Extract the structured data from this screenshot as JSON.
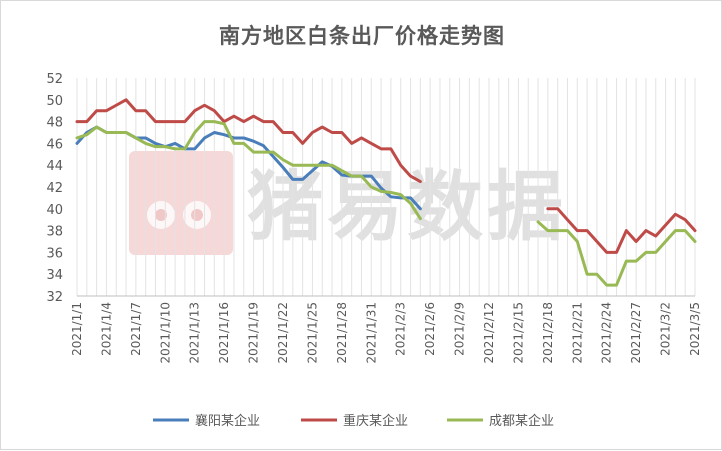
{
  "chart_data": {
    "type": "line",
    "title": "南方地区白条出厂价格走势图",
    "watermark": "猪易数据",
    "ylim": [
      32,
      52
    ],
    "yticks": [
      32,
      34,
      36,
      38,
      40,
      42,
      44,
      46,
      48,
      50,
      52
    ],
    "x": [
      "2021/1/1",
      "2021/1/2",
      "2021/1/3",
      "2021/1/4",
      "2021/1/5",
      "2021/1/6",
      "2021/1/7",
      "2021/1/8",
      "2021/1/9",
      "2021/1/10",
      "2021/1/11",
      "2021/1/12",
      "2021/1/13",
      "2021/1/14",
      "2021/1/15",
      "2021/1/16",
      "2021/1/17",
      "2021/1/18",
      "2021/1/19",
      "2021/1/20",
      "2021/1/21",
      "2021/1/22",
      "2021/1/23",
      "2021/1/24",
      "2021/1/25",
      "2021/1/26",
      "2021/1/27",
      "2021/1/28",
      "2021/1/29",
      "2021/1/30",
      "2021/1/31",
      "2021/2/1",
      "2021/2/2",
      "2021/2/3",
      "2021/2/4",
      "2021/2/5",
      "2021/2/6",
      "2021/2/7",
      "2021/2/8",
      "2021/2/9",
      "2021/2/10",
      "2021/2/11",
      "2021/2/12",
      "2021/2/13",
      "2021/2/14",
      "2021/2/15",
      "2021/2/16",
      "2021/2/17",
      "2021/2/18",
      "2021/2/19",
      "2021/2/20",
      "2021/2/21",
      "2021/2/22",
      "2021/2/23",
      "2021/2/24",
      "2021/2/25",
      "2021/2/26",
      "2021/2/27",
      "2021/2/28",
      "2021/3/1",
      "2021/3/2",
      "2021/3/3",
      "2021/3/4",
      "2021/3/5"
    ],
    "x_tick_labels": [
      "2021/1/1",
      "2021/1/4",
      "2021/1/7",
      "2021/1/10",
      "2021/1/13",
      "2021/1/16",
      "2021/1/19",
      "2021/1/22",
      "2021/1/25",
      "2021/1/28",
      "2021/1/31",
      "2021/2/3",
      "2021/2/6",
      "2021/2/9",
      "2021/2/12",
      "2021/2/15",
      "2021/2/18",
      "2021/2/21",
      "2021/2/24",
      "2021/2/27",
      "2021/3/2",
      "2021/3/5"
    ],
    "grid": "vertical",
    "legend_position": "bottom",
    "series": [
      {
        "name": "襄阳某企业",
        "color": "#4a7ebb",
        "values": [
          46,
          47,
          47.5,
          47,
          47,
          47,
          46.5,
          46.5,
          46,
          45.7,
          46,
          45.5,
          45.5,
          46.5,
          47,
          46.8,
          46.5,
          46.5,
          46.2,
          45.8,
          44.8,
          43.8,
          42.7,
          42.7,
          43.5,
          44.3,
          43.9,
          43.1,
          43,
          43,
          43,
          41.9,
          41.1,
          41,
          41,
          40,
          null,
          null,
          null,
          null,
          null,
          null,
          null,
          null,
          null,
          null,
          null,
          null,
          null,
          null,
          null,
          null,
          null,
          null,
          null,
          null,
          null,
          null,
          null,
          null,
          null,
          null,
          null,
          null
        ]
      },
      {
        "name": "重庆某企业",
        "color": "#be4b48",
        "values": [
          48,
          48,
          49,
          49,
          49.5,
          50,
          49,
          49,
          48,
          48,
          48,
          48,
          49,
          49.5,
          49,
          48,
          48.5,
          48,
          48.5,
          48,
          48,
          47,
          47,
          46,
          47,
          47.5,
          47,
          47,
          46,
          46.5,
          46,
          45.5,
          45.5,
          44,
          43,
          42.5,
          null,
          null,
          null,
          null,
          null,
          null,
          null,
          null,
          null,
          null,
          null,
          null,
          40,
          40,
          39,
          38,
          38,
          37,
          36,
          36,
          38,
          37,
          38,
          37.5,
          38.5,
          39.5,
          39,
          38
        ]
      },
      {
        "name": "成都某企业",
        "color": "#98b954",
        "values": [
          46.5,
          46.8,
          47.5,
          47,
          47,
          47,
          46.5,
          46,
          45.7,
          45.7,
          45.5,
          45.5,
          47,
          48,
          48,
          47.8,
          46,
          46,
          45.2,
          45.2,
          45.2,
          44.5,
          44,
          44,
          44,
          44,
          44,
          43.5,
          43,
          43,
          42,
          41.6,
          41.5,
          41.3,
          40.5,
          39.1,
          null,
          null,
          null,
          null,
          null,
          null,
          null,
          null,
          null,
          null,
          null,
          38.8,
          38,
          38,
          38,
          37,
          34,
          34,
          33,
          33,
          35.2,
          35.2,
          36,
          36,
          37,
          38,
          38,
          37
        ]
      }
    ]
  }
}
